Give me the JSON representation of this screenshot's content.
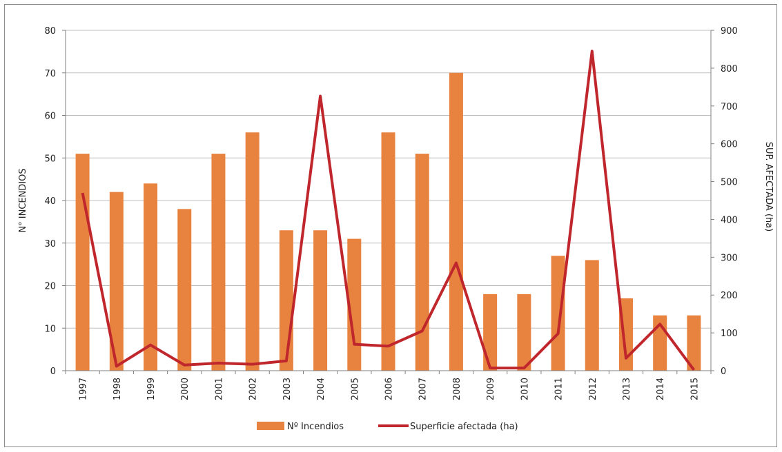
{
  "chart_data": {
    "type": "bar+line",
    "categories": [
      "1997",
      "1998",
      "1999",
      "2000",
      "2001",
      "2002",
      "2003",
      "2004",
      "2005",
      "2006",
      "2007",
      "2008",
      "2009",
      "2010",
      "2011",
      "2012",
      "2013",
      "2014",
      "2015"
    ],
    "series": [
      {
        "name": "Nº Incendios",
        "type": "bar",
        "axis": "left",
        "color": "#e8823f",
        "values": [
          51,
          42,
          44,
          38,
          51,
          56,
          33,
          33,
          31,
          56,
          51,
          70,
          18,
          18,
          27,
          26,
          17,
          13,
          13
        ]
      },
      {
        "name": "Superficie afectada (ha)",
        "type": "line",
        "axis": "right",
        "color": "#c0272d",
        "values": [
          470,
          12,
          68,
          15,
          20,
          17,
          26,
          726,
          70,
          65,
          105,
          285,
          7,
          7,
          98,
          845,
          33,
          123,
          2
        ]
      }
    ],
    "ylabel": "N° INCENDIOS",
    "y2label": "SUP. AFECTADA (ha)",
    "ylim": [
      0,
      80
    ],
    "y2lim": [
      0,
      900
    ],
    "yticks": [
      "0",
      "10",
      "20",
      "30",
      "40",
      "50",
      "60",
      "70",
      "80"
    ],
    "y2ticks": [
      "0",
      "100",
      "200",
      "300",
      "400",
      "500",
      "600",
      "700",
      "800",
      "900"
    ],
    "grid": true,
    "legend": "bottom-center"
  }
}
